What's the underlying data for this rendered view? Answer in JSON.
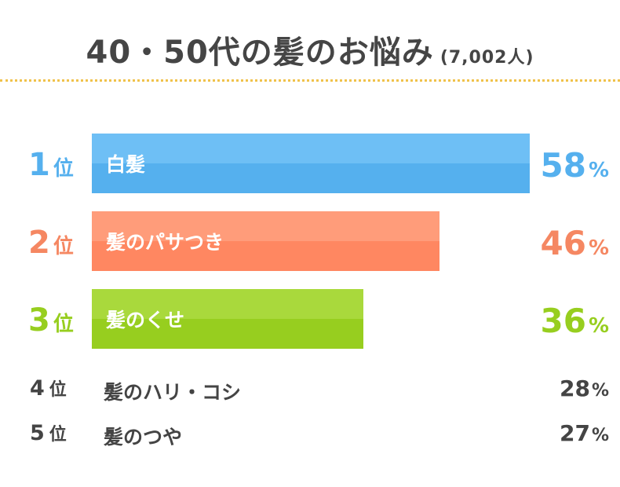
{
  "title": "40・50代の髪のお悩み",
  "subtitle": "(7,002人)",
  "rank_unit": "位",
  "percent_unit": "%",
  "colors": {
    "rank1": "#5ab3f0",
    "rank2": "#f58762",
    "rank3": "#9acd2a",
    "text": "#444444",
    "divider": "#f0c24b"
  },
  "chart_data": {
    "type": "bar",
    "title": "40・50代の髪のお悩み",
    "subtitle": "(7,002人)",
    "orientation": "horizontal",
    "categories": [
      "白髪",
      "髪のパサつき",
      "髪のくせ",
      "髪のハリ・コシ",
      "髪のつや"
    ],
    "ranks": [
      "1",
      "2",
      "3",
      "4",
      "5"
    ],
    "values": [
      58,
      46,
      36,
      28,
      27
    ],
    "value_labels": [
      "58",
      "46",
      "36",
      "28",
      "27"
    ],
    "xlim": [
      0,
      58
    ],
    "grid": false,
    "legend": "none"
  }
}
